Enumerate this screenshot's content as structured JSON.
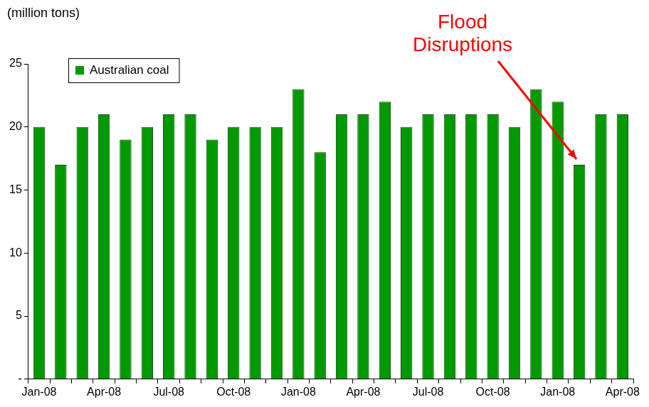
{
  "chart_data": {
    "type": "bar",
    "y_label": "(million tons)",
    "categories": [
      "Jan-08",
      null,
      null,
      "Apr-08",
      null,
      null,
      "Jul-08",
      null,
      null,
      "Oct-08",
      null,
      null,
      "Jan-08",
      null,
      null,
      "Apr-08",
      null,
      null,
      "Jul-08",
      null,
      null,
      "Oct-08",
      null,
      null,
      "Jan-08",
      null,
      null,
      "Apr-08"
    ],
    "series": [
      {
        "name": "Australian coal",
        "color": "#009900",
        "values": [
          20,
          17,
          20,
          21,
          19,
          20,
          21,
          21,
          19,
          20,
          20,
          20,
          23,
          18,
          21,
          21,
          22,
          20,
          21,
          21,
          21,
          21,
          20,
          23,
          22,
          17,
          21,
          21
        ]
      }
    ],
    "ylim": [
      0,
      25
    ],
    "yticks": [
      {
        "value": 0,
        "label": "-"
      },
      5,
      10,
      15,
      20,
      25
    ],
    "grid": false,
    "legend": "upper left",
    "annotations": [
      {
        "text": "Flood Disruptions",
        "color": "#ff0000"
      }
    ]
  }
}
